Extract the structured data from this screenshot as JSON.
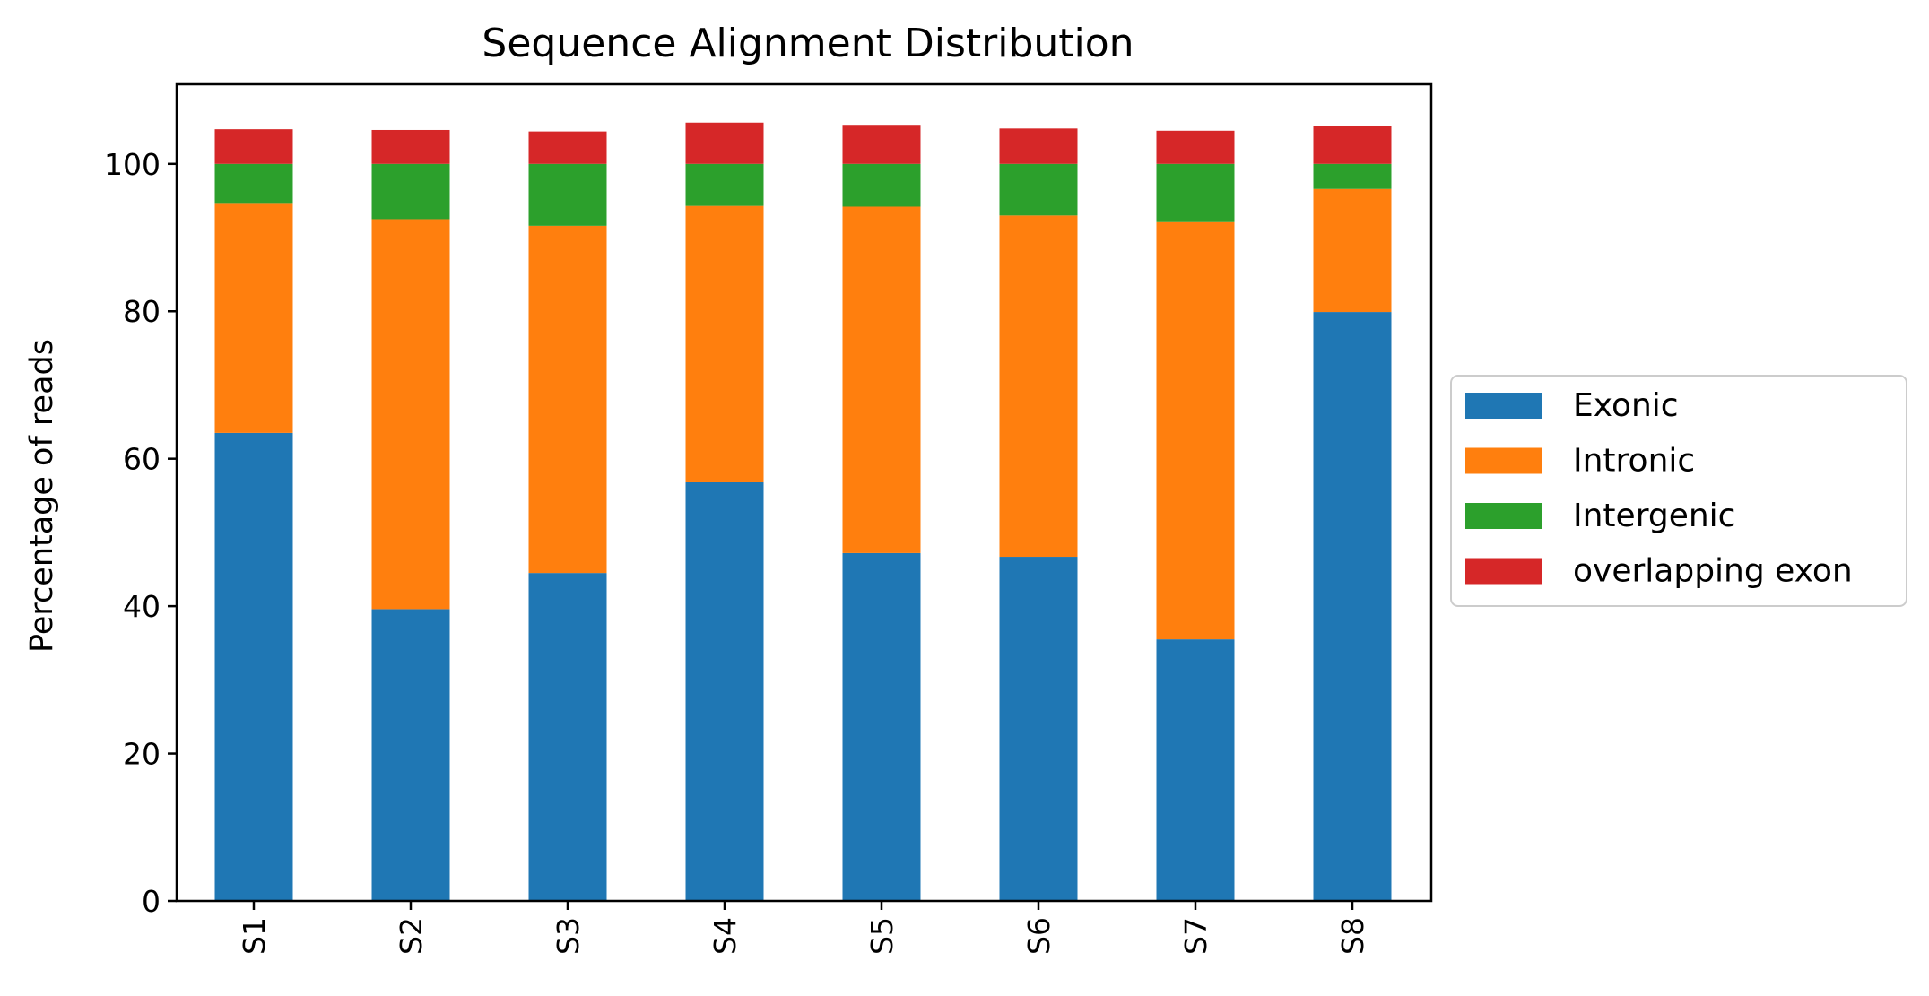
{
  "chart_data": {
    "type": "bar",
    "stacked": true,
    "title": "Sequence Alignment Distribution",
    "xlabel": "",
    "ylabel": "Percentage of reads",
    "categories": [
      "S1",
      "S2",
      "S3",
      "S4",
      "S5",
      "S6",
      "S7",
      "S8"
    ],
    "series": [
      {
        "name": "Exonic",
        "color": "#1f77b4",
        "values": [
          63.5,
          39.6,
          44.5,
          56.8,
          47.2,
          46.7,
          35.5,
          79.9
        ]
      },
      {
        "name": "Intronic",
        "color": "#ff7f0e",
        "values": [
          31.2,
          52.9,
          47.1,
          37.5,
          47.0,
          46.3,
          56.6,
          16.7
        ]
      },
      {
        "name": "Intergenic",
        "color": "#2ca02c",
        "values": [
          5.3,
          7.5,
          8.4,
          5.7,
          5.8,
          7.0,
          7.9,
          3.4
        ]
      },
      {
        "name": "overlapping exon",
        "color": "#d62728",
        "values": [
          4.7,
          4.6,
          4.4,
          5.6,
          5.3,
          4.8,
          4.5,
          5.2
        ]
      }
    ],
    "yticks": [
      0,
      20,
      40,
      60,
      80,
      100
    ],
    "ylim": [
      0,
      110.8
    ],
    "grid": false,
    "legend_position": "center-right-outside",
    "xtick_rotation": 90
  }
}
